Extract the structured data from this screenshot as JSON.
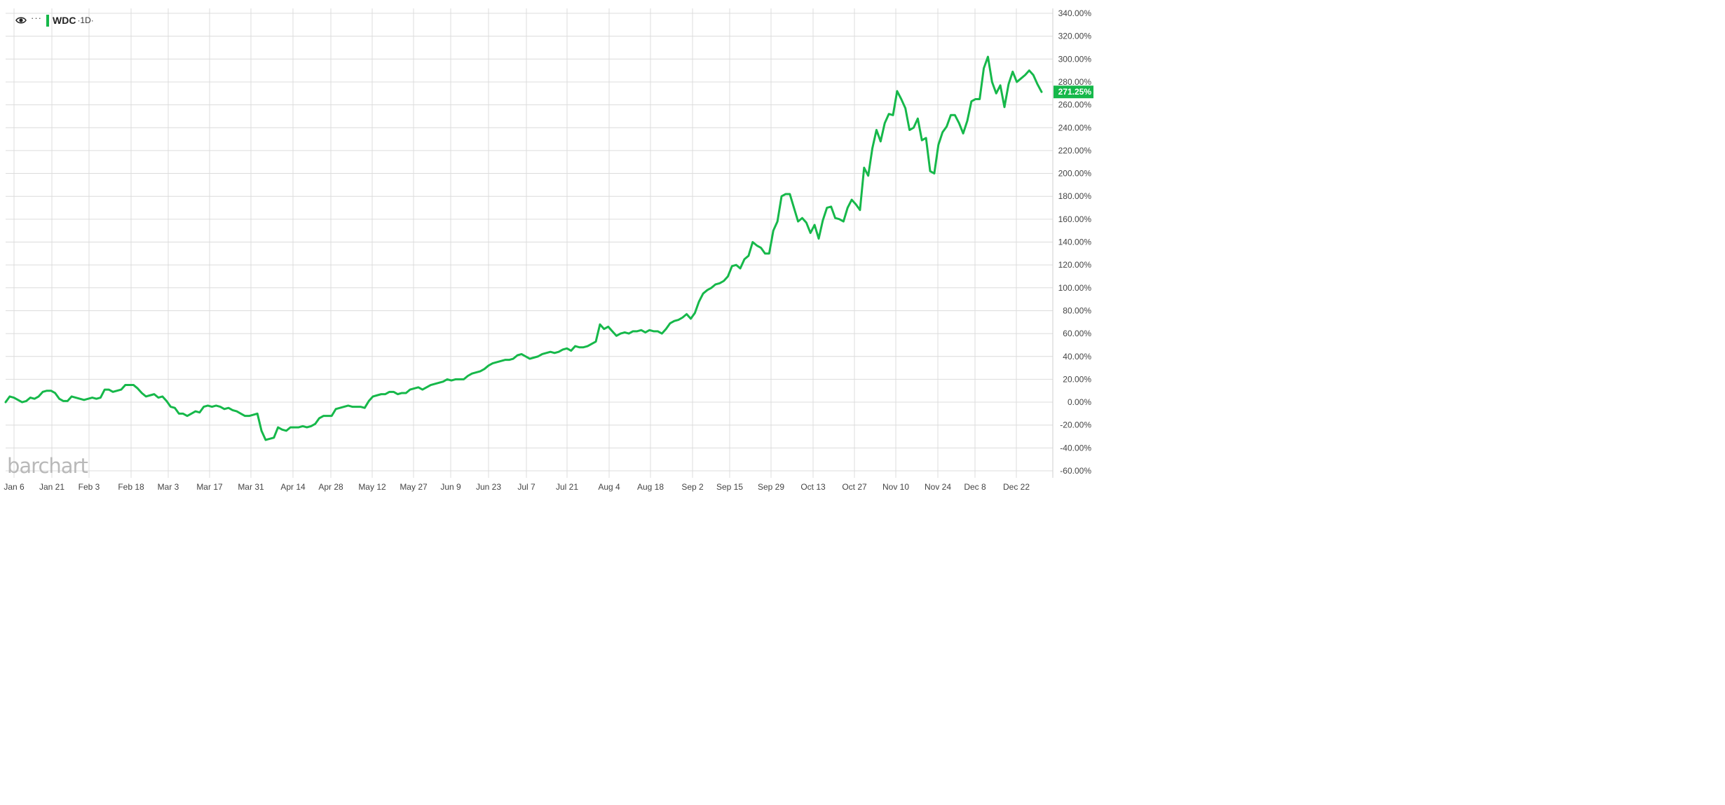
{
  "legend": {
    "symbol": "WDC",
    "period": "·1D·",
    "more": "···",
    "eye_icon": "eye-icon",
    "line_color": "#16b84a"
  },
  "watermark": "barchart",
  "chart_data": {
    "type": "line",
    "series": [
      {
        "color": "#16b84a",
        "values": [
          0,
          5,
          4,
          2,
          0,
          1,
          4,
          3,
          5,
          9,
          10,
          10,
          8,
          3,
          1,
          1,
          5,
          4,
          3,
          2,
          3,
          4,
          3,
          4,
          11,
          11,
          9,
          10,
          11,
          15,
          15,
          15,
          12,
          8,
          5,
          6,
          7,
          4,
          5,
          1,
          -4,
          -5,
          -10,
          -10,
          -12,
          -10,
          -8,
          -9,
          -4,
          -3,
          -4,
          -3,
          -4,
          -6,
          -5,
          -7,
          -8,
          -10,
          -12,
          -12,
          -11,
          -10,
          -25,
          -33,
          -32,
          -31,
          -22,
          -24,
          -25,
          -22,
          -22,
          -22,
          -21,
          -22,
          -21,
          -19,
          -14,
          -12,
          -12,
          -12,
          -6,
          -5,
          -4,
          -3,
          -4,
          -4,
          -4,
          -5,
          1,
          5,
          6,
          7,
          7,
          9,
          9,
          7,
          8,
          8,
          11,
          12,
          13,
          11,
          13,
          15,
          16,
          17,
          18,
          20,
          19,
          20,
          20,
          20,
          23,
          25,
          26,
          27,
          29,
          32,
          34,
          35,
          36,
          37,
          37,
          38,
          41,
          42,
          40,
          38,
          39,
          40,
          42,
          43,
          44,
          43,
          44,
          46,
          47,
          45,
          49,
          48,
          48,
          49,
          51,
          53,
          68,
          64,
          66,
          62,
          58,
          60,
          61,
          60,
          62,
          62,
          63,
          61,
          63,
          62,
          62,
          60,
          64,
          69,
          71,
          72,
          74,
          77,
          73,
          78,
          88,
          95,
          98,
          100,
          103,
          104,
          106,
          110,
          119,
          120,
          117,
          125,
          128,
          140,
          137,
          135,
          130,
          130,
          150,
          158,
          180,
          182,
          182,
          170,
          158,
          161,
          157,
          148,
          155,
          143,
          159,
          170,
          171,
          161,
          160,
          158,
          170,
          177,
          173,
          168,
          205,
          198,
          222,
          238,
          228,
          244,
          252,
          251,
          272,
          265,
          257,
          238,
          240,
          248,
          229,
          231,
          202,
          200,
          225,
          236,
          241,
          251,
          251,
          244,
          235,
          246,
          263,
          265,
          265,
          292,
          302,
          280,
          270,
          277,
          258,
          278,
          289,
          280,
          283,
          286,
          290,
          286,
          278,
          271.25
        ]
      }
    ],
    "x_tick_labels": [
      "Jan 6",
      "Jan 21",
      "Feb 3",
      "Feb 18",
      "Mar 3",
      "Mar 17",
      "Mar 31",
      "Apr 14",
      "Apr 28",
      "May 12",
      "May 27",
      "Jun 9",
      "Jun 23",
      "Jul 7",
      "Jul 21",
      "Aug 4",
      "Aug 18",
      "Sep 2",
      "Sep 15",
      "Sep 29",
      "Oct 13",
      "Oct 27",
      "Nov 10",
      "Nov 24",
      "Dec 8",
      "Dec 22"
    ],
    "y_ticks": [
      340,
      320,
      300,
      280,
      260,
      240,
      220,
      200,
      180,
      160,
      140,
      120,
      100,
      80,
      60,
      40,
      20,
      0,
      -20,
      -40,
      -60
    ],
    "y_tick_labels": [
      "340.00%",
      "320.00%",
      "300.00%",
      "280.00%",
      "260.00%",
      "240.00%",
      "220.00%",
      "200.00%",
      "180.00%",
      "160.00%",
      "140.00%",
      "120.00%",
      "100.00%",
      "80.00%",
      "60.00%",
      "40.00%",
      "20.00%",
      "0.00%",
      "-20.00%",
      "-40.00%",
      "-60.00%"
    ],
    "ylim": [
      -60,
      340
    ],
    "last_value": 271.25,
    "last_value_label": "271.25%",
    "grid": true,
    "y_axis_side": "right"
  }
}
